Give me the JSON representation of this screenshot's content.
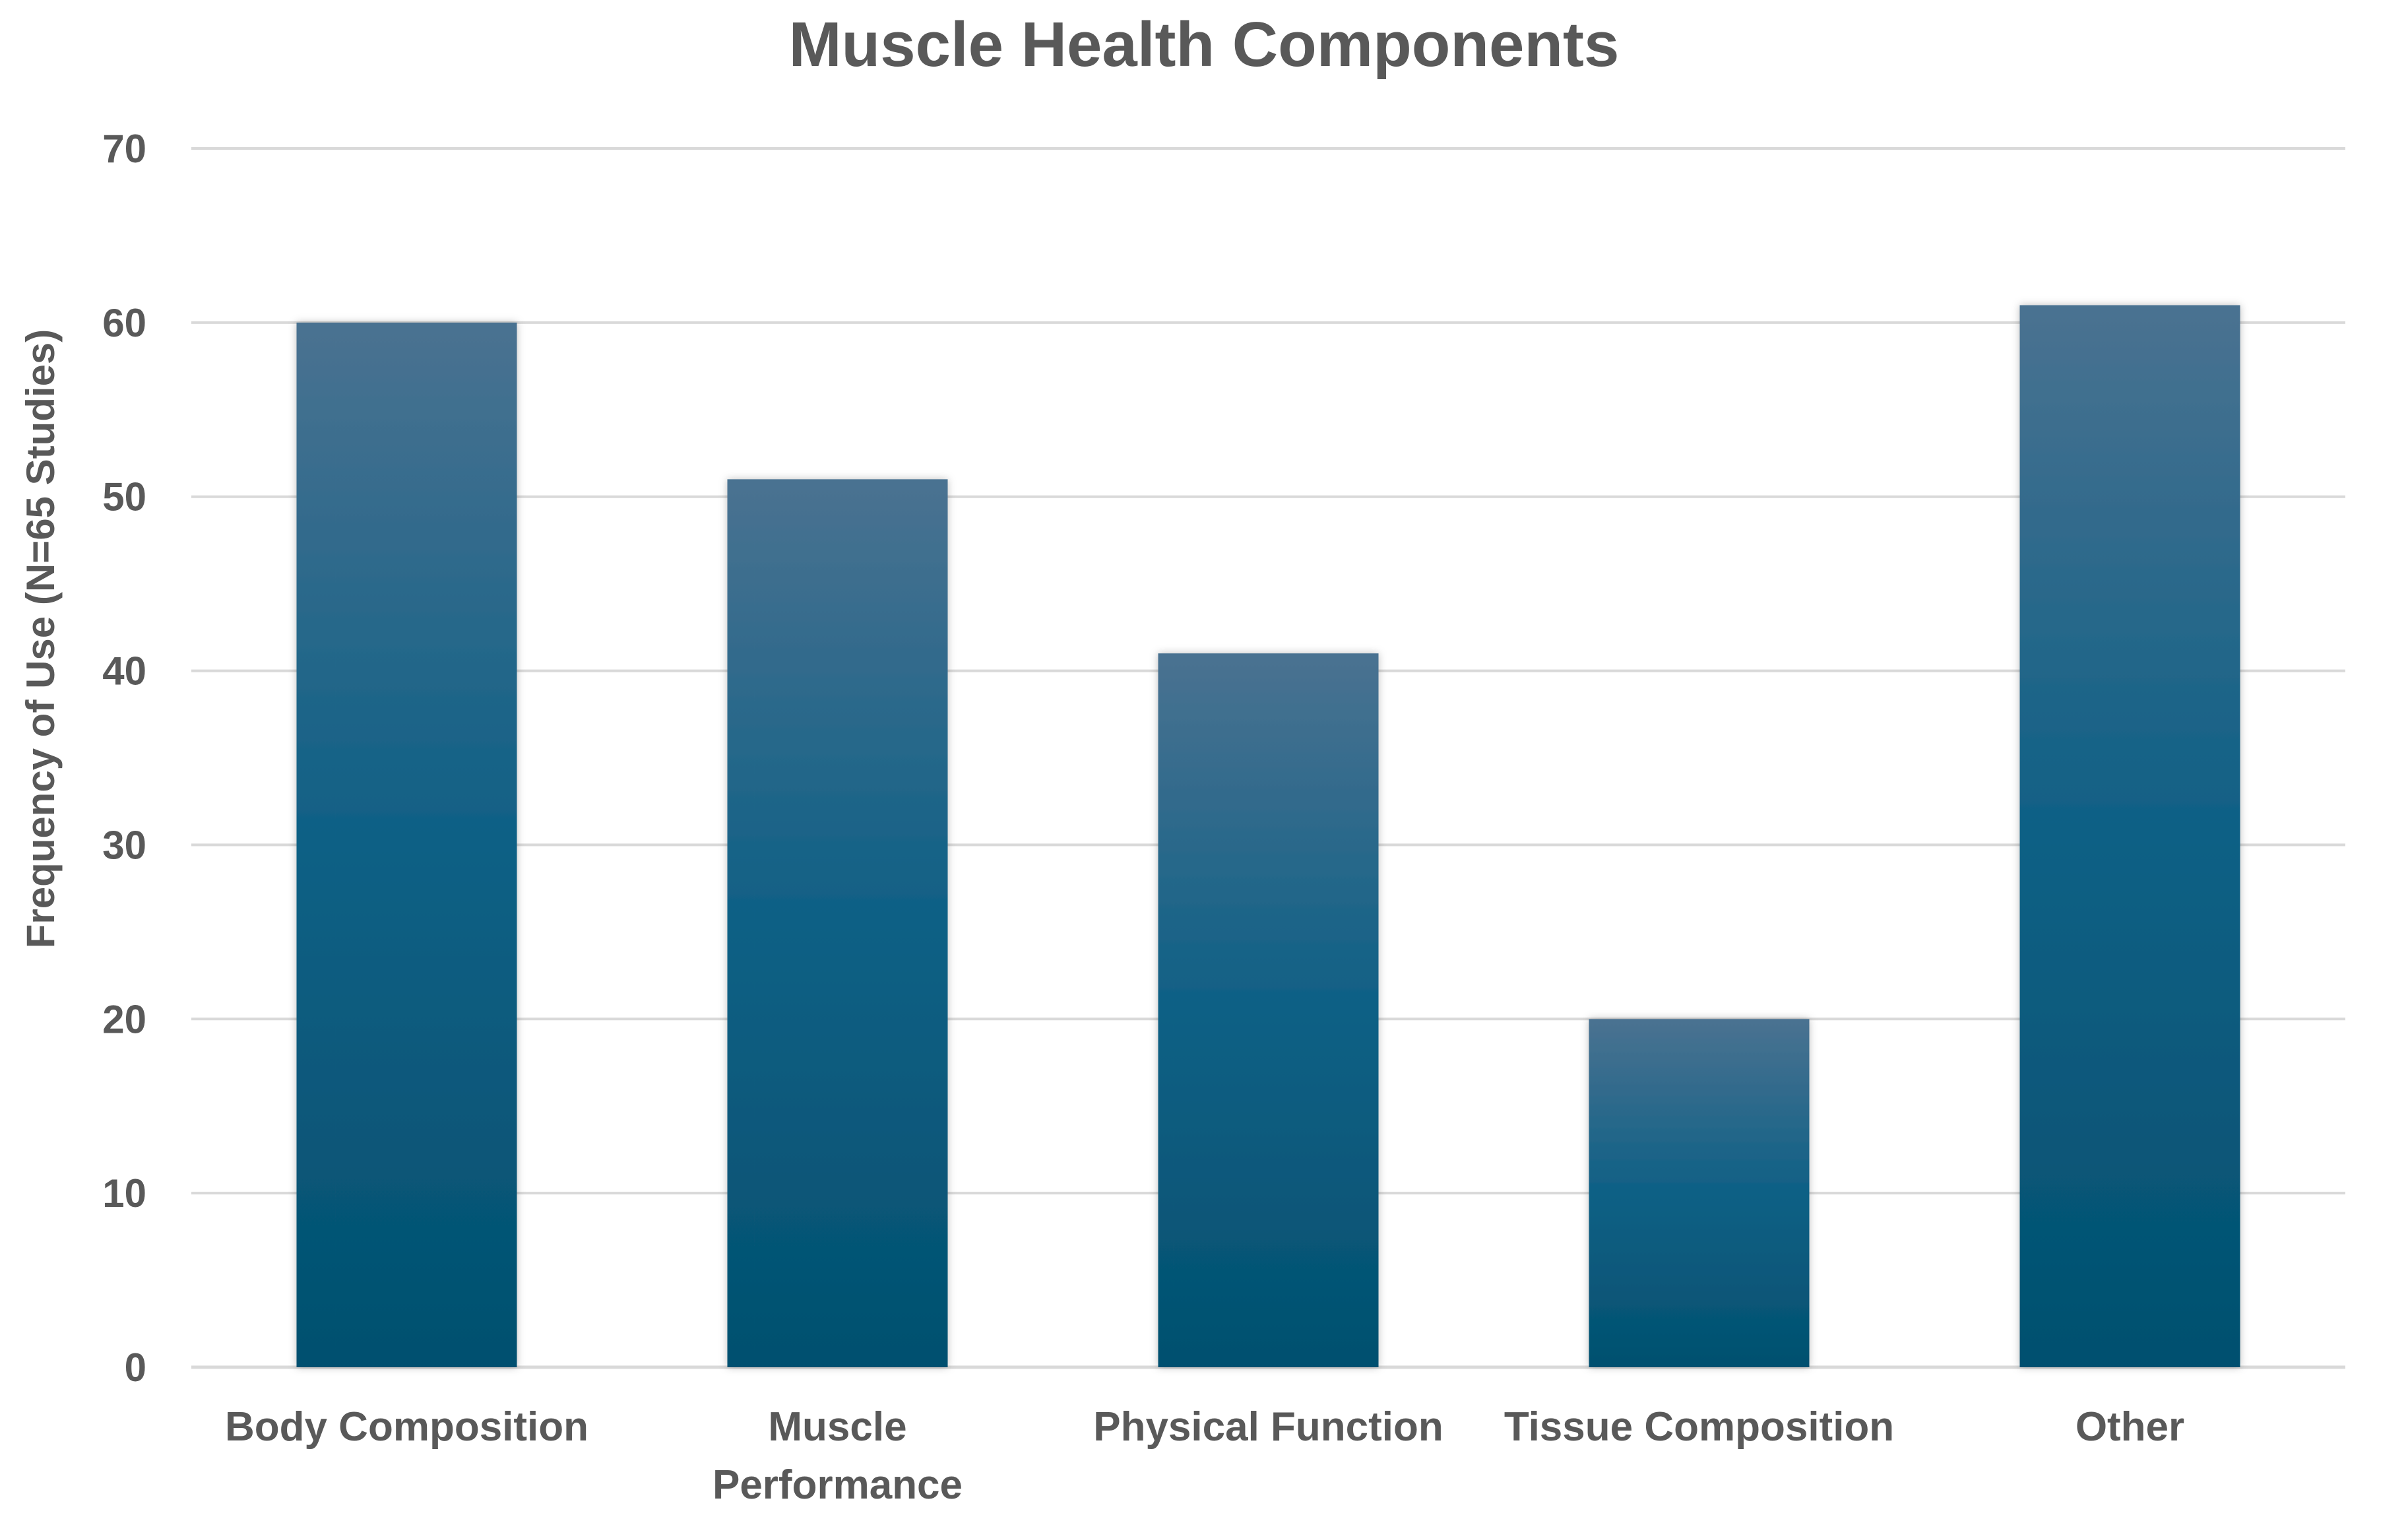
{
  "chart_data": {
    "type": "bar",
    "title": "Muscle Health Components",
    "xlabel": "",
    "ylabel": "Frequency of Use (N=65 Studies)",
    "categories": [
      [
        "Body Composition"
      ],
      [
        "Muscle",
        "Performance"
      ],
      [
        "Physical Function"
      ],
      [
        "Tissue Composition"
      ],
      [
        "Other"
      ]
    ],
    "values": [
      60,
      51,
      41,
      20,
      61
    ],
    "ylim": [
      0,
      70
    ],
    "yticks": [
      0,
      10,
      20,
      30,
      40,
      50,
      60,
      70
    ],
    "grid": true,
    "legend": "none",
    "colors": {
      "bar_top": "#4a7291",
      "bar_mid": "#0e6085",
      "bar_bottom": "#03506f",
      "text": "#595959",
      "grid": "#d9d9d9"
    }
  }
}
